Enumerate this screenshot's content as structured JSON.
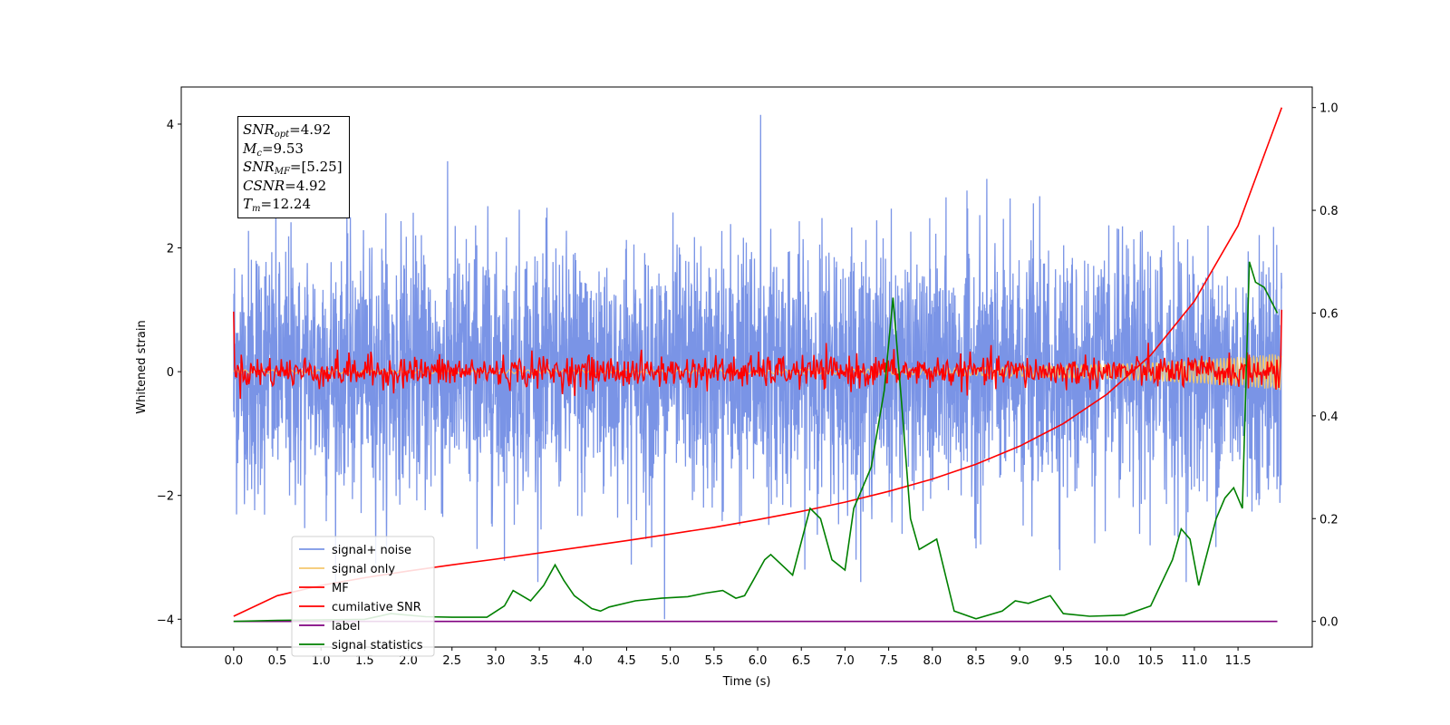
{
  "info_box": {
    "lines": [
      {
        "sym": "SNR",
        "sub": "opt",
        "rest": "=4.92"
      },
      {
        "sym": "M",
        "sub": "c",
        "rest": "=9.53"
      },
      {
        "sym": "SNR",
        "sub": "MF",
        "rest": "=[5.25]"
      },
      {
        "sym": "CSNR",
        "sub": "",
        "rest": "=4.92"
      },
      {
        "sym": "T",
        "sub": "m",
        "rest": "=12.24"
      }
    ]
  },
  "chart_data": {
    "type": "line",
    "xlabel": "Time (s)",
    "ylabel": "Whitened strain",
    "xlim": [
      -0.6,
      12.35
    ],
    "ylim": [
      -4.45,
      4.6
    ],
    "ylim_right": [
      -0.05,
      1.04
    ],
    "x_ticks": [
      "0.0",
      "0.5",
      "1.0",
      "1.5",
      "2.0",
      "2.5",
      "3.0",
      "3.5",
      "4.0",
      "4.5",
      "5.0",
      "5.5",
      "6.0",
      "6.5",
      "7.0",
      "7.5",
      "8.0",
      "8.5",
      "9.0",
      "9.5",
      "10.0",
      "10.5",
      "11.0",
      "11.5"
    ],
    "y_ticks": [
      "4",
      "2",
      "0",
      "−2",
      "−4"
    ],
    "y_tick_values": [
      4,
      2,
      0,
      -2,
      -4
    ],
    "y_right_ticks": [
      "1.0",
      "0.8",
      "0.6",
      "0.4",
      "0.2",
      "0.0"
    ],
    "y_right_tick_values": [
      1.0,
      0.8,
      0.6,
      0.4,
      0.2,
      0.0
    ],
    "grid": false,
    "legend_position": "lower-left",
    "legend": [
      {
        "label": "signal+ noise",
        "color": "#7a94e6"
      },
      {
        "label": "signal only",
        "color": "#f4c76e"
      },
      {
        "label": "MF",
        "color": "#ff0000"
      },
      {
        "label": "cumilative SNR",
        "color": "#ff0000"
      },
      {
        "label": "label",
        "color": "#800080"
      },
      {
        "label": "signal statistics",
        "color": "#008000"
      }
    ],
    "series": [
      {
        "name": "signal+ noise",
        "axis": "left",
        "color": "#7a94e6",
        "style": "noise",
        "x_range": [
          0,
          12
        ],
        "amplitude": 1.0,
        "extremes_max": 4.15,
        "extremes_min": -4.0
      },
      {
        "name": "signal only",
        "axis": "left",
        "color": "#f4c76e",
        "style": "chirp",
        "x_range": [
          0,
          12
        ],
        "end_amplitude": 0.3
      },
      {
        "name": "MF",
        "axis": "left",
        "color": "#ff0000",
        "style": "mf",
        "x_range": [
          0,
          12
        ],
        "start_value": 0.97,
        "end_value": 1.0,
        "amplitude": 0.13
      },
      {
        "name": "cumilative SNR",
        "axis": "right",
        "color": "#ff0000",
        "x": [
          0.0,
          0.5,
          1.0,
          1.5,
          2.0,
          2.5,
          3.0,
          3.5,
          4.0,
          4.5,
          5.0,
          5.5,
          6.0,
          6.5,
          7.0,
          7.5,
          8.0,
          8.5,
          9.0,
          9.5,
          10.0,
          10.5,
          11.0,
          11.5,
          12.0
        ],
        "y": [
          0.01,
          0.05,
          0.07,
          0.085,
          0.098,
          0.11,
          0.121,
          0.133,
          0.145,
          0.157,
          0.17,
          0.183,
          0.198,
          0.214,
          0.232,
          0.253,
          0.277,
          0.306,
          0.341,
          0.385,
          0.442,
          0.518,
          0.623,
          0.77,
          1.0
        ]
      },
      {
        "name": "label",
        "axis": "right",
        "color": "#800080",
        "x": [
          0.0,
          11.95
        ],
        "y": [
          0.0,
          0.0
        ]
      },
      {
        "name": "signal statistics",
        "axis": "right",
        "color": "#008000",
        "x": [
          0.0,
          0.5,
          1.0,
          1.5,
          1.8,
          2.0,
          2.2,
          2.5,
          2.9,
          3.1,
          3.2,
          3.4,
          3.55,
          3.68,
          3.78,
          3.9,
          4.1,
          4.2,
          4.3,
          4.6,
          4.9,
          5.2,
          5.4,
          5.6,
          5.75,
          5.85,
          5.95,
          6.08,
          6.15,
          6.4,
          6.6,
          6.72,
          6.85,
          7.0,
          7.1,
          7.3,
          7.45,
          7.55,
          7.65,
          7.75,
          7.85,
          8.05,
          8.25,
          8.5,
          8.8,
          8.95,
          9.1,
          9.35,
          9.5,
          9.8,
          10.2,
          10.5,
          10.75,
          10.85,
          10.95,
          11.05,
          11.25,
          11.35,
          11.45,
          11.55,
          11.63,
          11.7,
          11.8,
          11.95
        ],
        "y": [
          0.0,
          0.002,
          0.003,
          0.004,
          0.015,
          0.012,
          0.009,
          0.008,
          0.008,
          0.03,
          0.06,
          0.04,
          0.07,
          0.11,
          0.08,
          0.05,
          0.025,
          0.02,
          0.028,
          0.04,
          0.045,
          0.048,
          0.055,
          0.06,
          0.045,
          0.05,
          0.08,
          0.12,
          0.13,
          0.09,
          0.22,
          0.2,
          0.12,
          0.1,
          0.22,
          0.3,
          0.45,
          0.63,
          0.42,
          0.2,
          0.14,
          0.16,
          0.02,
          0.005,
          0.02,
          0.04,
          0.035,
          0.05,
          0.015,
          0.01,
          0.012,
          0.03,
          0.12,
          0.18,
          0.16,
          0.07,
          0.2,
          0.24,
          0.26,
          0.22,
          0.7,
          0.66,
          0.65,
          0.6
        ]
      }
    ]
  }
}
